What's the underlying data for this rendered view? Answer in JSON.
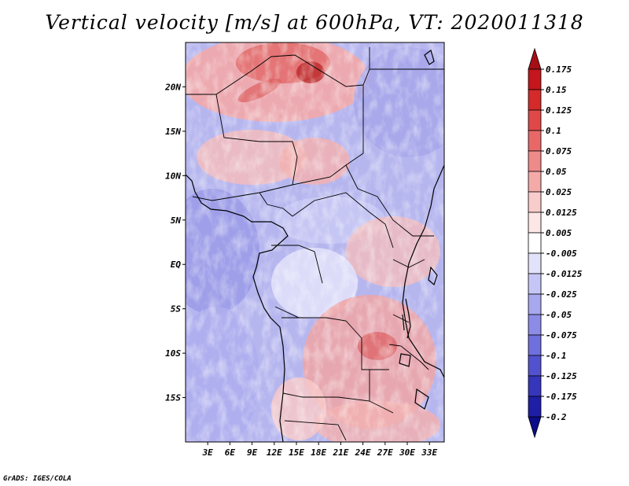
{
  "title": "Vertical velocity [m/s] at 600hPa, VT: 2020011318",
  "footer": "GrADS: IGES/COLA",
  "map": {
    "lon_range": [
      0,
      35
    ],
    "lat_range": [
      -20,
      25
    ],
    "lat_ticks": [
      {
        "value": 20,
        "label": "20N"
      },
      {
        "value": 15,
        "label": "15N"
      },
      {
        "value": 10,
        "label": "10N"
      },
      {
        "value": 5,
        "label": "5N"
      },
      {
        "value": 0,
        "label": "EQ"
      },
      {
        "value": -5,
        "label": "5S"
      },
      {
        "value": -10,
        "label": "10S"
      },
      {
        "value": -15,
        "label": "15S"
      }
    ],
    "lon_ticks": [
      {
        "value": 3,
        "label": "3E"
      },
      {
        "value": 6,
        "label": "6E"
      },
      {
        "value": 9,
        "label": "9E"
      },
      {
        "value": 12,
        "label": "12E"
      },
      {
        "value": 15,
        "label": "15E"
      },
      {
        "value": 18,
        "label": "18E"
      },
      {
        "value": 21,
        "label": "21E"
      },
      {
        "value": 24,
        "label": "24E"
      },
      {
        "value": 27,
        "label": "27E"
      },
      {
        "value": 30,
        "label": "30E"
      },
      {
        "value": 33,
        "label": "33E"
      }
    ]
  },
  "colorbar": {
    "levels": [
      "0.175",
      "0.15",
      "0.125",
      "0.1",
      "0.075",
      "0.05",
      "0.025",
      "0.0125",
      "0.005",
      "-0.005",
      "-0.0125",
      "-0.025",
      "-0.05",
      "-0.075",
      "-0.1",
      "-0.125",
      "-0.175",
      "-0.2"
    ],
    "colors": [
      "#a50f15",
      "#c4161c",
      "#d42a2a",
      "#e04848",
      "#e86868",
      "#ef8a8a",
      "#f5aaaa",
      "#f9cccc",
      "#fde6e6",
      "#ffffff",
      "#e2e2fb",
      "#c6c6f6",
      "#a8a8f0",
      "#8c8ce8",
      "#6f6fde",
      "#5252d0",
      "#3636bc",
      "#1e1ea6",
      "#0c0c8a"
    ]
  }
}
